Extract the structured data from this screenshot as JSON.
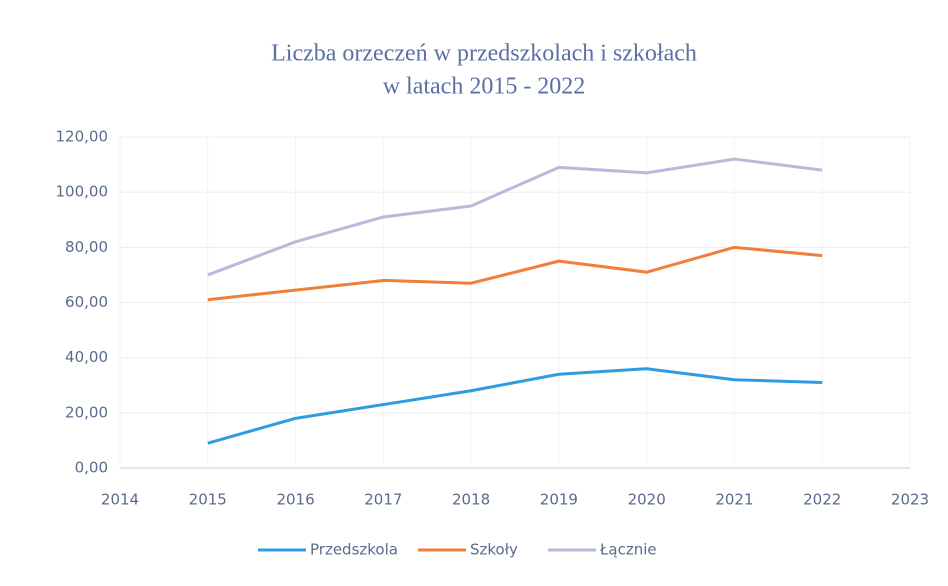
{
  "chart_data": {
    "type": "line",
    "title": [
      "Liczba orzeczeń w przedszkolach i szkołach",
      "w latach 2015 - 2022"
    ],
    "x": [
      2015,
      2016,
      2017,
      2018,
      2019,
      2020,
      2021,
      2022
    ],
    "series": [
      {
        "name": "Przedszkola",
        "color": "#2f9be0",
        "values": [
          9,
          18,
          23,
          28,
          34,
          36,
          32,
          31
        ]
      },
      {
        "name": "Szkoły",
        "color": "#f07f3c",
        "values": [
          61,
          64.5,
          68,
          67,
          75,
          71,
          80,
          77
        ]
      },
      {
        "name": "Łącznie",
        "color": "#bcb8dc",
        "values": [
          70,
          82,
          91,
          95,
          109,
          107,
          112,
          108
        ]
      }
    ],
    "xlim": [
      2014,
      2023
    ],
    "xticks": [
      2014,
      2015,
      2016,
      2017,
      2018,
      2019,
      2020,
      2021,
      2022,
      2023
    ],
    "ylim": [
      0,
      120
    ],
    "yticks": [
      {
        "value": 0,
        "label": "0,00"
      },
      {
        "value": 20,
        "label": "20,00"
      },
      {
        "value": 40,
        "label": "40,00"
      },
      {
        "value": 60,
        "label": "60,00"
      },
      {
        "value": 80,
        "label": "80,00"
      },
      {
        "value": 100,
        "label": "100,00"
      },
      {
        "value": 120,
        "label": "120,00"
      }
    ],
    "grid": true,
    "legend": "bottom"
  }
}
